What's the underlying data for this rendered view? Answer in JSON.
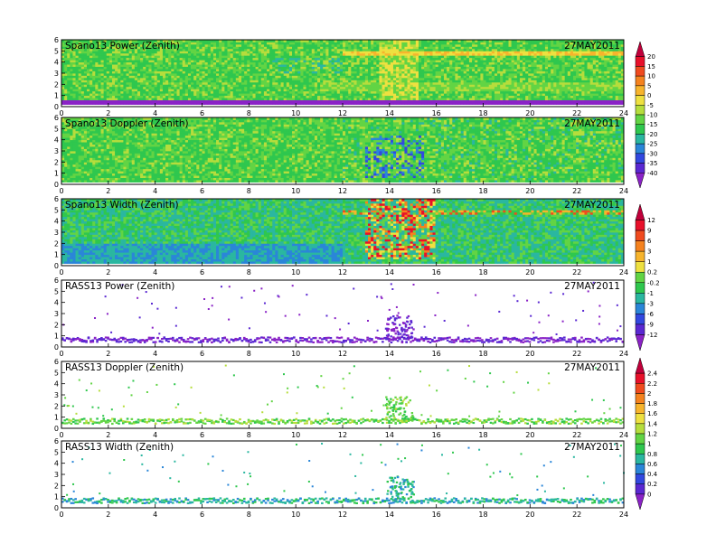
{
  "chart_data": [
    {
      "type": "heatmap",
      "title": "Spano13 Power (Zenith)",
      "date": "27MAY2011",
      "x_ticks": [
        "0",
        "2",
        "4",
        "6",
        "8",
        "10",
        "12",
        "14",
        "16",
        "18",
        "20",
        "22",
        "24"
      ],
      "y_ticks": [
        "0",
        "1",
        "2",
        "3",
        "4",
        "5",
        "6"
      ],
      "xlim": [
        0,
        24
      ],
      "ylim": [
        0,
        6
      ],
      "colorbar_group": "power",
      "pattern": "dense_spano"
    },
    {
      "type": "heatmap",
      "title": "Spano13 Doppler (Zenith)",
      "date": "27MAY2011",
      "x_ticks": [
        "0",
        "2",
        "4",
        "6",
        "8",
        "10",
        "12",
        "14",
        "16",
        "18",
        "20",
        "22",
        "24"
      ],
      "y_ticks": [
        "0",
        "1",
        "2",
        "3",
        "4",
        "5",
        "6"
      ],
      "xlim": [
        0,
        24
      ],
      "ylim": [
        0,
        6
      ],
      "colorbar_group": "power",
      "pattern": "dense_spano"
    },
    {
      "type": "heatmap",
      "title": "Spano13 Width (Zenith)",
      "date": "27MAY2011",
      "x_ticks": [
        "0",
        "2",
        "4",
        "6",
        "8",
        "10",
        "12",
        "14",
        "16",
        "18",
        "20",
        "22",
        "24"
      ],
      "y_ticks": [
        "0",
        "1",
        "2",
        "3",
        "4",
        "5",
        "6"
      ],
      "xlim": [
        0,
        24
      ],
      "ylim": [
        0,
        6
      ],
      "colorbar_group": "width",
      "pattern": "dense_spano"
    },
    {
      "type": "heatmap",
      "title": "RASS13 Power (Zenith)",
      "date": "27MAY2011",
      "x_ticks": [
        "0",
        "2",
        "4",
        "6",
        "8",
        "10",
        "12",
        "14",
        "16",
        "18",
        "20",
        "22",
        "24"
      ],
      "y_ticks": [
        "0",
        "1",
        "2",
        "3",
        "4",
        "5",
        "6"
      ],
      "xlim": [
        0,
        24
      ],
      "ylim": [
        0,
        6
      ],
      "colorbar_group": "width",
      "pattern": "sparse_rass"
    },
    {
      "type": "heatmap",
      "title": "RASS13 Doppler (Zenith)",
      "date": "27MAY2011",
      "x_ticks": [
        "0",
        "2",
        "4",
        "6",
        "8",
        "10",
        "12",
        "14",
        "16",
        "18",
        "20",
        "22",
        "24"
      ],
      "y_ticks": [
        "0",
        "1",
        "2",
        "3",
        "4",
        "5",
        "6"
      ],
      "xlim": [
        0,
        24
      ],
      "ylim": [
        0,
        6
      ],
      "colorbar_group": "rass",
      "pattern": "sparse_rass"
    },
    {
      "type": "heatmap",
      "title": "RASS13 Width (Zenith)",
      "date": "27MAY2011",
      "x_ticks": [
        "0",
        "2",
        "4",
        "6",
        "8",
        "10",
        "12",
        "14",
        "16",
        "18",
        "20",
        "22",
        "24"
      ],
      "y_ticks": [
        "0",
        "1",
        "2",
        "3",
        "4",
        "5",
        "6"
      ],
      "xlim": [
        0,
        24
      ],
      "ylim": [
        0,
        6
      ],
      "colorbar_group": "rass",
      "pattern": "sparse_rass"
    }
  ],
  "colorbars": [
    {
      "id": "power",
      "labels": [
        "20",
        "15",
        "10",
        "5",
        "0",
        "-5",
        "-10",
        "-15",
        "-20",
        "-25",
        "-30",
        "-35",
        "-40"
      ],
      "colors": [
        "#c0003a",
        "#e8102a",
        "#f04a1e",
        "#f5821e",
        "#f7b42c",
        "#eee040",
        "#b6dd3c",
        "#62d444",
        "#2fc74e",
        "#2ab7a0",
        "#2a86d8",
        "#3248e0",
        "#5a28d2",
        "#8a22c6"
      ]
    },
    {
      "id": "width",
      "labels": [
        "12",
        "9",
        "6",
        "3",
        "1",
        "0.2",
        "-0.2",
        "-1",
        "-3",
        "-6",
        "-9",
        "-12"
      ],
      "colors": [
        "#c0003a",
        "#e8102a",
        "#f04a1e",
        "#f5821e",
        "#f7b42c",
        "#eee040",
        "#62d444",
        "#2fc74e",
        "#2ab7a0",
        "#2a86d8",
        "#3248e0",
        "#5a28d2",
        "#8a22c6"
      ]
    },
    {
      "id": "rass",
      "labels": [
        "2.4",
        "2.2",
        "2",
        "1.8",
        "1.6",
        "1.4",
        "1.2",
        "1",
        "0.8",
        "0.6",
        "0.4",
        "0.2",
        "0"
      ],
      "colors": [
        "#c0003a",
        "#e8102a",
        "#f04a1e",
        "#f5821e",
        "#f7b42c",
        "#eee040",
        "#b6dd3c",
        "#62d444",
        "#2fc74e",
        "#2ab7a0",
        "#2a86d8",
        "#3248e0",
        "#5a28d2",
        "#8a22c6"
      ]
    }
  ]
}
